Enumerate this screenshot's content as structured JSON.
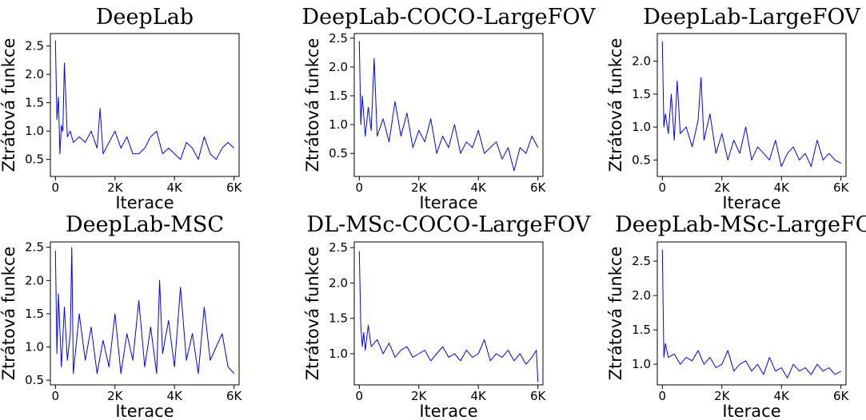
{
  "chart_data": [
    {
      "type": "line",
      "title": "DeepLab",
      "xlabel": "Iterace",
      "ylabel": "Ztrátová funkce",
      "x_ticks": [
        0,
        2000,
        4000,
        6000
      ],
      "x_tick_labels": [
        "0",
        "2K",
        "4K",
        "6K"
      ],
      "y_ticks": [
        0.5,
        1.0,
        1.5,
        2.0,
        2.5
      ],
      "y_tick_labels": [
        "0.5",
        "1.0",
        "1.5",
        "2.0",
        "2.5"
      ],
      "xlim": [
        -170,
        6170
      ],
      "ylim": [
        0.2,
        2.72
      ],
      "grid": false,
      "series": [
        {
          "color": "#0000ff",
          "x": [
            0,
            50,
            100,
            150,
            200,
            250,
            300,
            400,
            500,
            600,
            800,
            1000,
            1200,
            1400,
            1500,
            1600,
            1800,
            2000,
            2200,
            2400,
            2600,
            2800,
            3000,
            3200,
            3400,
            3600,
            3800,
            4000,
            4200,
            4400,
            4600,
            4800,
            5000,
            5200,
            5400,
            5600,
            5800,
            6000
          ],
          "values": [
            2.6,
            1.2,
            1.6,
            0.6,
            1.1,
            1.0,
            2.2,
            0.9,
            1.0,
            0.8,
            0.9,
            0.8,
            1.0,
            0.7,
            1.4,
            0.6,
            0.8,
            1.0,
            0.7,
            0.9,
            0.6,
            0.6,
            0.7,
            0.9,
            1.0,
            0.6,
            0.7,
            0.6,
            0.5,
            0.8,
            0.7,
            0.5,
            0.9,
            0.6,
            0.5,
            0.7,
            0.8,
            0.7
          ]
        }
      ]
    },
    {
      "type": "line",
      "title": "DeepLab-COCO-LargeFOV",
      "xlabel": "Iterace",
      "ylabel": "Ztrátová funkce",
      "x_ticks": [
        0,
        2000,
        4000,
        6000
      ],
      "x_tick_labels": [
        "0",
        "2K",
        "4K",
        "6K"
      ],
      "y_ticks": [
        0.5,
        1.0,
        1.5,
        2.0,
        2.5
      ],
      "y_tick_labels": [
        "0.5",
        "1.0",
        "1.5",
        "2.0",
        "2.5"
      ],
      "xlim": [
        -170,
        6170
      ],
      "ylim": [
        0.1,
        2.58
      ],
      "grid": false,
      "series": [
        {
          "color": "#0000ff",
          "x": [
            0,
            50,
            100,
            200,
            300,
            400,
            500,
            600,
            800,
            1000,
            1200,
            1400,
            1600,
            1800,
            2000,
            2200,
            2400,
            2600,
            2800,
            3000,
            3200,
            3400,
            3600,
            3800,
            4000,
            4200,
            4400,
            4600,
            4800,
            5000,
            5200,
            5400,
            5600,
            5800,
            6000
          ],
          "values": [
            2.45,
            1.0,
            1.5,
            0.8,
            1.3,
            0.9,
            2.15,
            0.8,
            1.1,
            0.7,
            1.4,
            0.8,
            1.2,
            0.6,
            0.9,
            0.7,
            1.1,
            0.5,
            0.8,
            0.6,
            1.0,
            0.5,
            0.7,
            0.6,
            0.9,
            0.5,
            0.6,
            0.7,
            0.4,
            0.6,
            0.2,
            0.6,
            0.5,
            0.8,
            0.6
          ]
        }
      ]
    },
    {
      "type": "line",
      "title": "DeepLab-LargeFOV",
      "xlabel": "Iterace",
      "ylabel": "Ztrátová funkce",
      "x_ticks": [
        0,
        2000,
        4000,
        6000
      ],
      "x_tick_labels": [
        "0",
        "2K",
        "4K",
        "6K"
      ],
      "y_ticks": [
        0.5,
        1.0,
        1.5,
        2.0
      ],
      "y_tick_labels": [
        "0.5",
        "1.0",
        "1.5",
        "2.0"
      ],
      "xlim": [
        -170,
        6170
      ],
      "ylim": [
        0.25,
        2.42
      ],
      "grid": false,
      "series": [
        {
          "color": "#0000ff",
          "x": [
            0,
            50,
            100,
            200,
            300,
            400,
            500,
            600,
            800,
            1000,
            1200,
            1300,
            1400,
            1600,
            1800,
            2000,
            2200,
            2400,
            2600,
            2800,
            3000,
            3200,
            3400,
            3600,
            3800,
            4000,
            4200,
            4400,
            4600,
            4800,
            5000,
            5200,
            5400,
            5600,
            5800,
            6000
          ],
          "values": [
            2.3,
            1.0,
            1.2,
            0.9,
            1.5,
            0.8,
            1.7,
            0.9,
            1.0,
            0.7,
            1.1,
            1.75,
            0.8,
            1.2,
            0.6,
            0.9,
            0.5,
            0.8,
            0.6,
            1.0,
            0.5,
            0.7,
            0.6,
            0.5,
            0.8,
            0.4,
            0.6,
            0.7,
            0.5,
            0.6,
            0.4,
            0.8,
            0.5,
            0.6,
            0.5,
            0.45
          ]
        }
      ]
    },
    {
      "type": "line",
      "title": "DeepLab-MSC",
      "xlabel": "Iterace",
      "ylabel": "Ztrátová funkce",
      "x_ticks": [
        0,
        2000,
        4000,
        6000
      ],
      "x_tick_labels": [
        "0",
        "2K",
        "4K",
        "6K"
      ],
      "y_ticks": [
        0.5,
        1.0,
        1.5,
        2.0,
        2.5
      ],
      "y_tick_labels": [
        "0.5",
        "1.0",
        "1.5",
        "2.0",
        "2.5"
      ],
      "xlim": [
        -170,
        6170
      ],
      "ylim": [
        0.43,
        2.58
      ],
      "grid": false,
      "series": [
        {
          "color": "#0000ff",
          "x": [
            0,
            50,
            100,
            200,
            300,
            400,
            500,
            550,
            600,
            800,
            1000,
            1200,
            1400,
            1600,
            1800,
            2000,
            2200,
            2400,
            2600,
            2800,
            3000,
            3200,
            3400,
            3500,
            3600,
            3800,
            4000,
            4200,
            4400,
            4600,
            4800,
            5000,
            5200,
            5400,
            5600,
            5800,
            6000
          ],
          "values": [
            2.45,
            0.9,
            1.8,
            0.7,
            1.6,
            0.8,
            1.2,
            2.5,
            0.6,
            1.5,
            0.8,
            1.3,
            0.6,
            1.1,
            0.7,
            1.5,
            0.6,
            1.2,
            0.8,
            1.7,
            0.7,
            1.3,
            0.6,
            2.0,
            0.9,
            1.4,
            0.7,
            1.9,
            0.8,
            1.2,
            0.6,
            1.6,
            0.8,
            1.0,
            1.2,
            0.7,
            0.6
          ]
        }
      ]
    },
    {
      "type": "line",
      "title": "DL-MSc-COCO-LargeFOV",
      "xlabel": "Iterace",
      "ylabel": "Ztrátová funkce",
      "x_ticks": [
        0,
        2000,
        4000,
        6000
      ],
      "x_tick_labels": [
        "0",
        "2K",
        "4K",
        "6K"
      ],
      "y_ticks": [
        1.0,
        1.5,
        2.0,
        2.5
      ],
      "y_tick_labels": [
        "1.0",
        "1.5",
        "2.0",
        "2.5"
      ],
      "xlim": [
        -170,
        6170
      ],
      "ylim": [
        0.56,
        2.58
      ],
      "grid": false,
      "series": [
        {
          "color": "#0000ff",
          "x": [
            0,
            50,
            100,
            150,
            200,
            300,
            400,
            600,
            800,
            1000,
            1200,
            1400,
            1600,
            1800,
            2000,
            2200,
            2400,
            2600,
            2800,
            3000,
            3200,
            3400,
            3600,
            3800,
            4000,
            4200,
            4400,
            4600,
            4800,
            5000,
            5200,
            5400,
            5600,
            5800,
            5950,
            6000
          ],
          "values": [
            2.45,
            1.4,
            1.1,
            1.3,
            1.05,
            1.4,
            1.1,
            1.2,
            1.0,
            1.15,
            0.95,
            1.05,
            1.1,
            0.95,
            1.0,
            1.05,
            0.9,
            1.0,
            1.1,
            0.95,
            1.0,
            0.9,
            1.05,
            0.95,
            1.0,
            1.2,
            0.9,
            1.0,
            0.95,
            1.05,
            0.9,
            1.0,
            0.85,
            0.95,
            1.05,
            0.6
          ]
        }
      ]
    },
    {
      "type": "line",
      "title": "DeepLab-MSc-LargeFOV",
      "xlabel": "Iterace",
      "ylabel": "Ztrátová funkce",
      "x_ticks": [
        0,
        2000,
        4000,
        6000
      ],
      "x_tick_labels": [
        "0",
        "2K",
        "4K",
        "6K"
      ],
      "y_ticks": [
        1.0,
        1.5,
        2.0,
        2.5
      ],
      "y_tick_labels": [
        "1.0",
        "1.5",
        "2.0",
        "2.5"
      ],
      "xlim": [
        -170,
        6170
      ],
      "ylim": [
        0.7,
        2.78
      ],
      "grid": false,
      "series": [
        {
          "color": "#0000ff",
          "x": [
            0,
            50,
            100,
            150,
            200,
            400,
            600,
            800,
            1000,
            1200,
            1400,
            1600,
            1800,
            2000,
            2200,
            2400,
            2600,
            2800,
            3000,
            3200,
            3400,
            3600,
            3800,
            4000,
            4200,
            4400,
            4600,
            4800,
            5000,
            5200,
            5400,
            5600,
            5800,
            6000
          ],
          "values": [
            2.67,
            1.1,
            1.3,
            1.2,
            1.1,
            1.15,
            1.0,
            1.1,
            1.05,
            1.2,
            1.0,
            1.1,
            0.95,
            1.0,
            1.2,
            0.9,
            1.0,
            1.05,
            0.9,
            1.0,
            0.85,
            1.1,
            0.9,
            0.95,
            0.8,
            1.0,
            0.9,
            0.95,
            0.85,
            1.0,
            0.9,
            0.95,
            0.85,
            0.9
          ]
        }
      ]
    }
  ]
}
